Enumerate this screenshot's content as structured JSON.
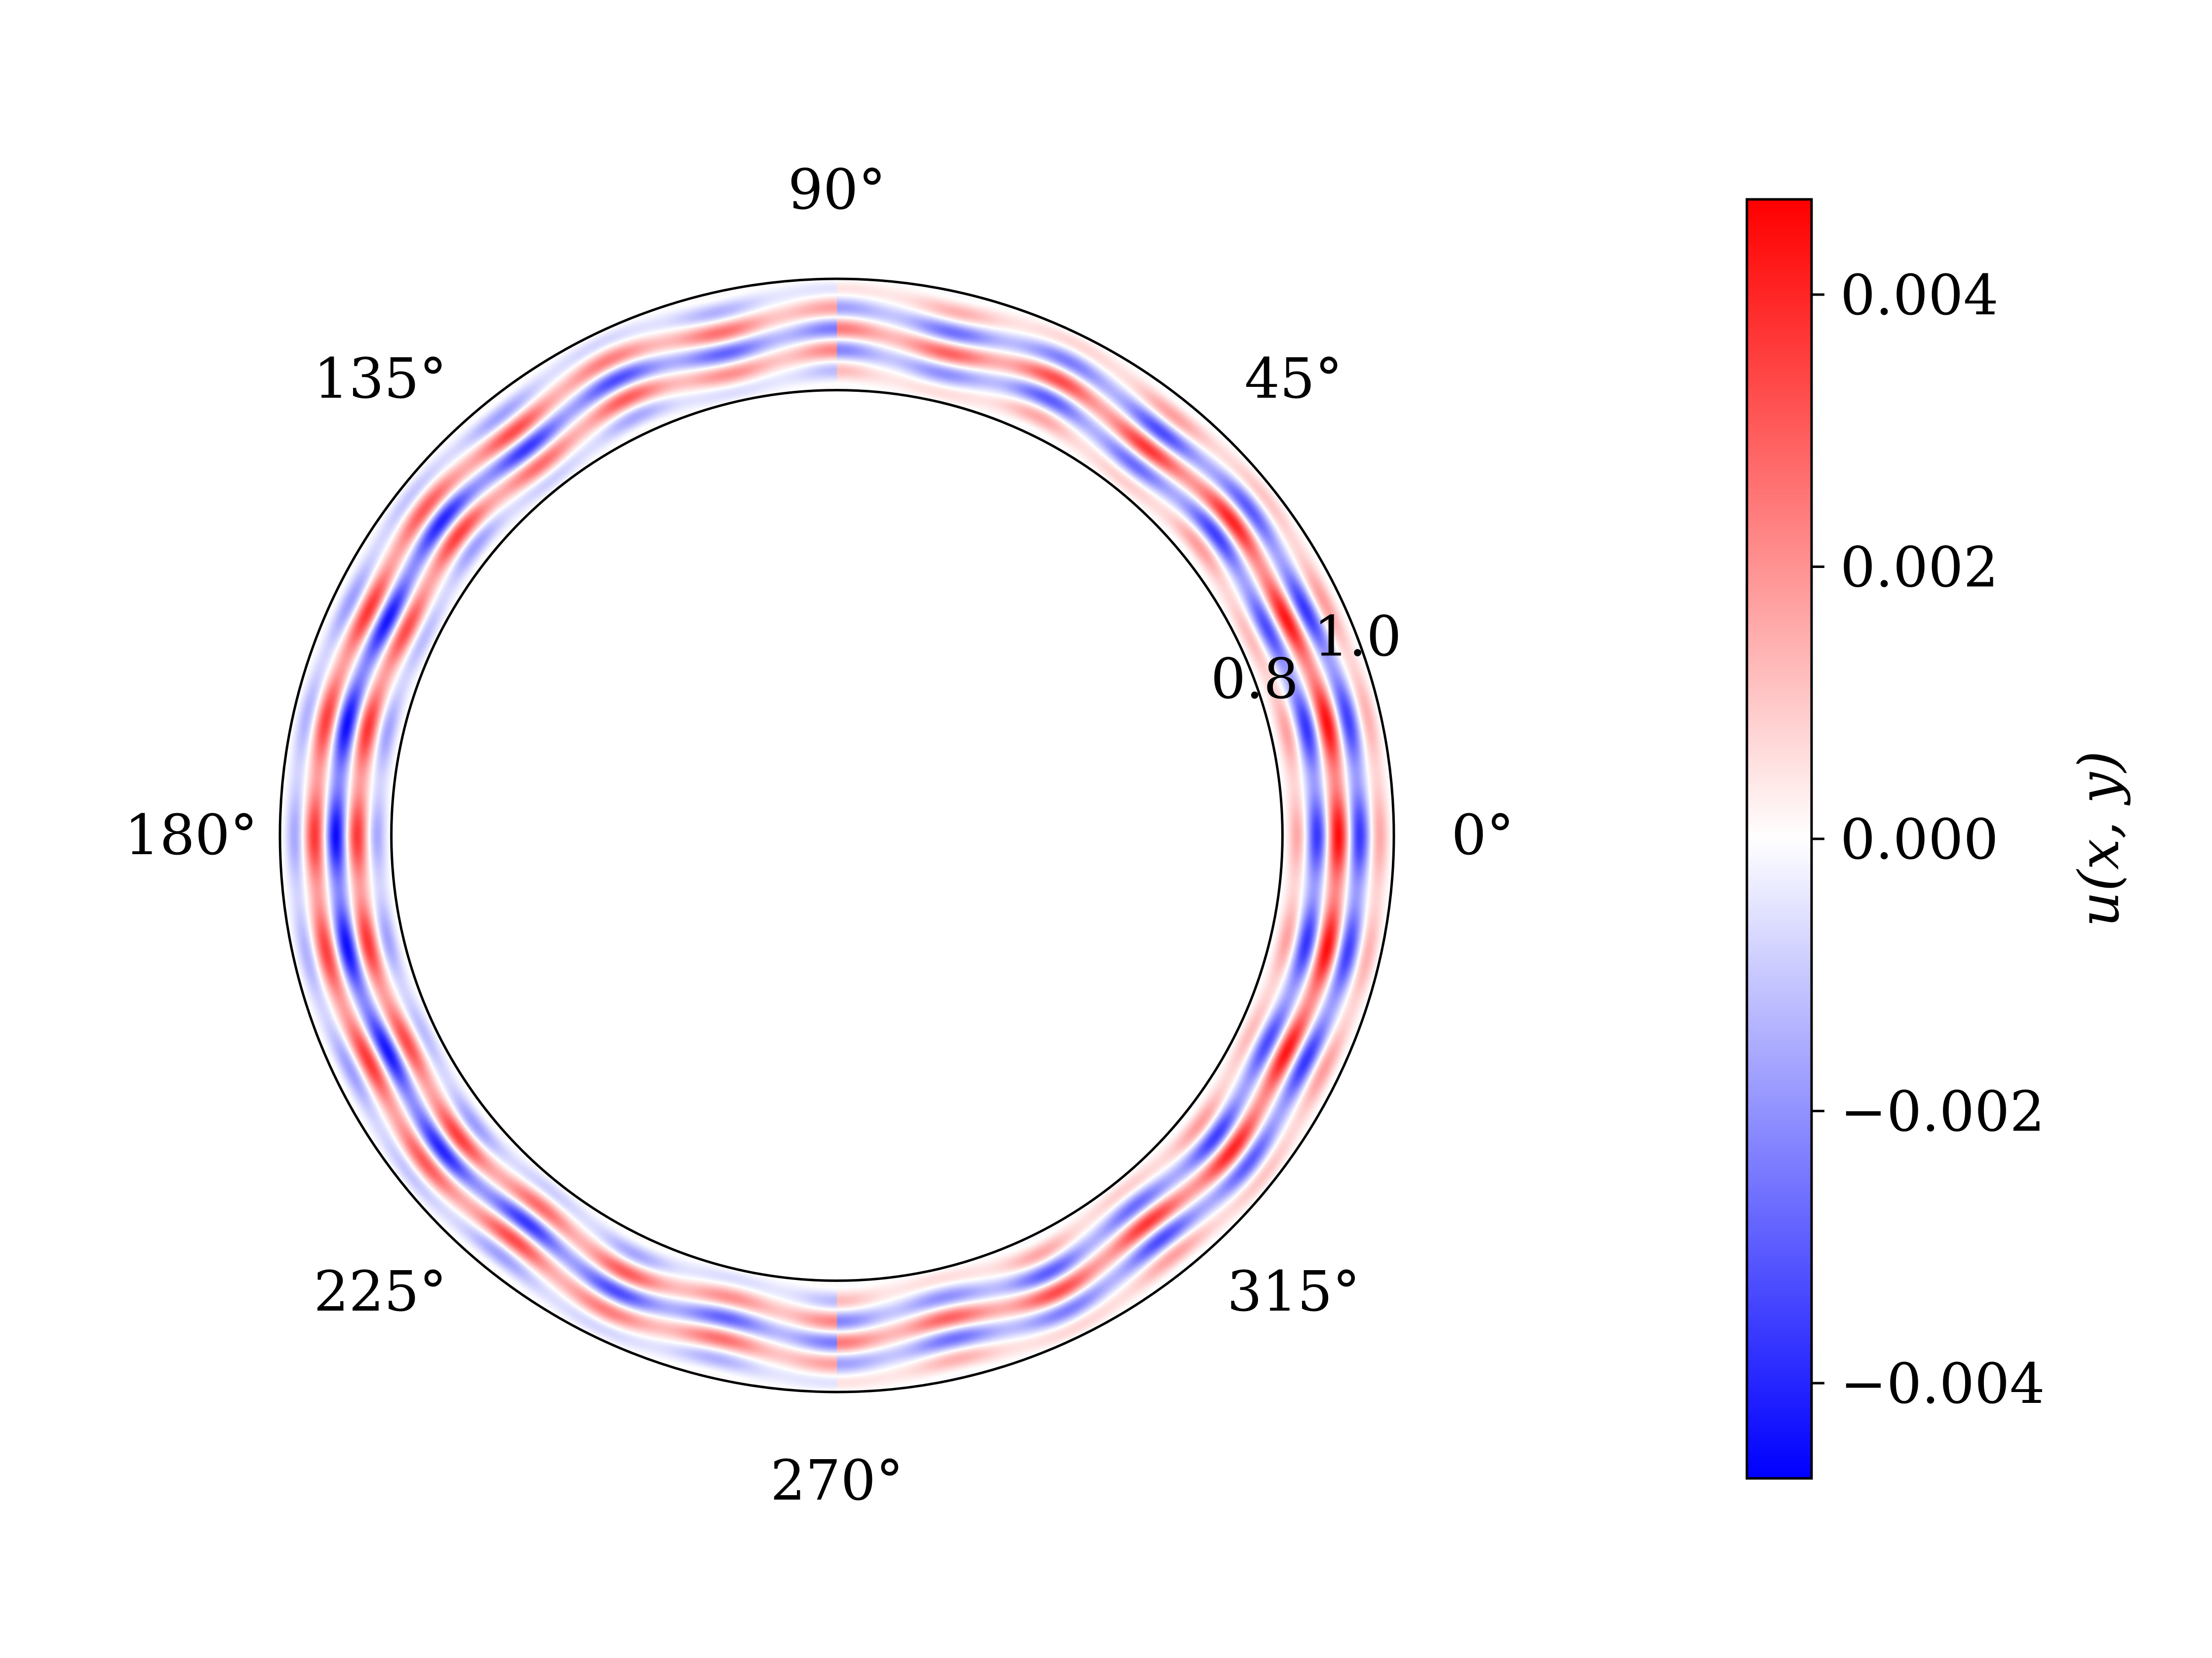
{
  "chart_data": {
    "type": "heatmap",
    "projection": "polar",
    "field_label": "u(x, y)",
    "r_min": 0.8,
    "r_max": 1.0,
    "theta_ticks": [
      "0°",
      "45°",
      "90°",
      "135°",
      "180°",
      "225°",
      "270°",
      "315°"
    ],
    "theta_tick_degrees": [
      0,
      45,
      90,
      135,
      180,
      225,
      270,
      315
    ],
    "r_ticks": [
      "0.8",
      "1.0"
    ],
    "r_tick_values": [
      0.8,
      1.0
    ],
    "r_tick_angle_deg": 22.5,
    "grid": false,
    "pattern": {
      "description_values": "standing-wave style oscillation: radial modes along the ring width, azimuthal modes around the ring",
      "radial_half_waves": 5,
      "azimuthal_waves": 14,
      "amplitude": 0.0045
    },
    "colorbar": {
      "cmap": "bwr",
      "vmin": -0.0047,
      "vmax": 0.0047,
      "ticks": [
        "0.004",
        "0.002",
        "0.000",
        "−0.002",
        "−0.004"
      ],
      "tick_values": [
        0.004,
        0.002,
        0.0,
        -0.002,
        -0.004
      ],
      "label": "u(x, y)",
      "position": "right"
    }
  }
}
